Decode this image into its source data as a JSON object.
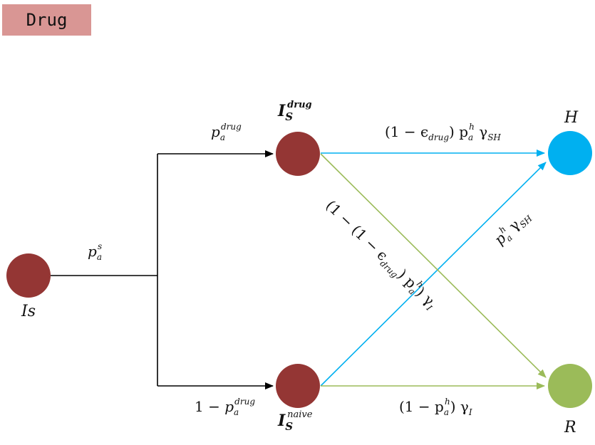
{
  "title_box": {
    "label": "Drug",
    "color": "#d99694"
  },
  "colors": {
    "compartment": "#943634",
    "hospitalized": "#00b0f0",
    "recovered": "#9bbb59",
    "arrow_black": "#000000",
    "arrow_blue": "#00b0f0",
    "arrow_green": "#9bbb59"
  },
  "nodes": {
    "is": {
      "label": "Is"
    },
    "is_drug": {
      "label": "I",
      "sub": "S",
      "sup": "drug"
    },
    "is_naive": {
      "label": "I",
      "sub": "S",
      "sup": "naive"
    },
    "h": {
      "label": "H"
    },
    "r": {
      "label": "R"
    }
  },
  "edges": {
    "is_split": {
      "label_base": "p",
      "label_sub": "a",
      "label_sup": "s"
    },
    "to_drug": {
      "label_base": "p",
      "label_sub": "a",
      "label_sup": "drug"
    },
    "to_naive": {
      "prefix": "1 − ",
      "label_base": "p",
      "label_sub": "a",
      "label_sup": "drug"
    },
    "drug_to_h": {
      "text1": "(1 − ϵ",
      "text1_sub": "drug",
      "text2": ") p",
      "text2_sub": "a",
      "text2_sup": "h",
      "text3": " γ",
      "text3_sub": "SH"
    },
    "drug_to_r": {
      "text1": "(1 − (1 − ϵ",
      "text1_sub": "drug",
      "text2": ") p",
      "text2_sub": "a",
      "text2_sup": "h",
      "text3": ") γ",
      "text3_sub": "I"
    },
    "naive_to_h": {
      "text1": "p",
      "text1_sub": "a",
      "text1_sup": "h",
      "text2": " γ",
      "text2_sub": "SH"
    },
    "naive_to_r": {
      "text1": "(1 − p",
      "text1_sub": "a",
      "text1_sup": "h",
      "text2": ") γ",
      "text2_sub": "I"
    }
  }
}
